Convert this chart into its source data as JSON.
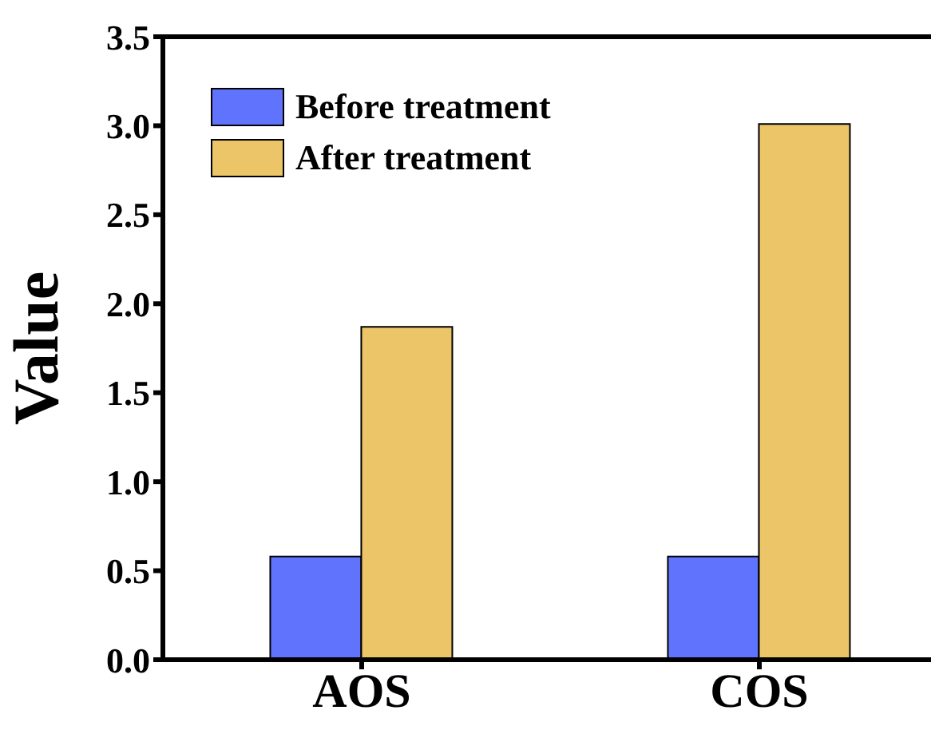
{
  "chart_data": {
    "type": "bar",
    "ylabel": "Value",
    "categories": [
      "AOS",
      "COS"
    ],
    "series": [
      {
        "name": "Before treatment",
        "color": "#5f73fd",
        "values": [
          0.58,
          0.58
        ]
      },
      {
        "name": "After treatment",
        "color": "#ebc568",
        "values": [
          1.87,
          3.01
        ]
      }
    ],
    "ylim": [
      0,
      3.5
    ],
    "yticks": [
      {
        "value": 0,
        "label": "0.0"
      },
      {
        "value": 0.5,
        "label": "0.5"
      },
      {
        "value": 1,
        "label": "1.0"
      },
      {
        "value": 1.5,
        "label": "1.5"
      },
      {
        "value": 2,
        "label": "2.0"
      },
      {
        "value": 2.5,
        "label": "2.5"
      },
      {
        "value": 3,
        "label": "3.0"
      },
      {
        "value": 3.5,
        "label": "3.5"
      }
    ],
    "legend": "top left",
    "grid": false
  }
}
